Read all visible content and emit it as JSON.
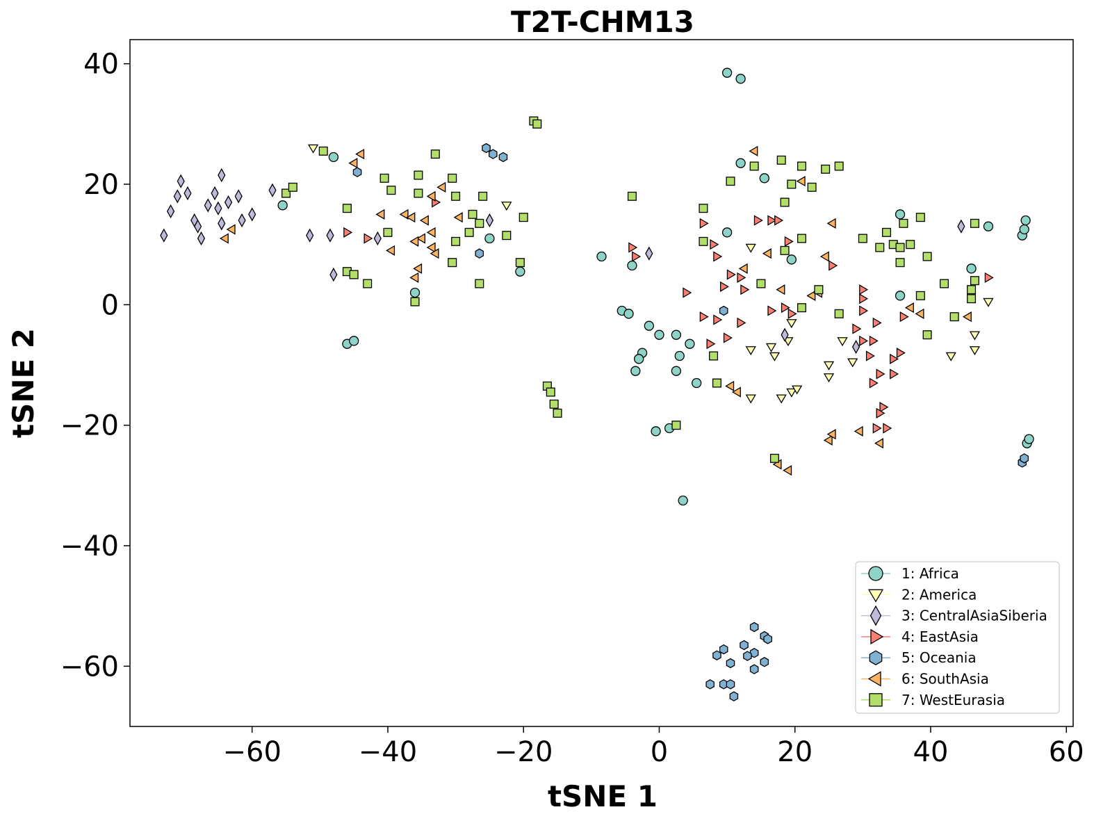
{
  "chart_data": {
    "type": "scatter",
    "title": "T2T-CHM13",
    "xlabel": "tSNE 1",
    "ylabel": "tSNE 2",
    "xlim": [
      -78,
      61
    ],
    "ylim": [
      -70,
      44
    ],
    "xticks": [
      -60,
      -40,
      -20,
      0,
      20,
      40,
      60
    ],
    "yticks": [
      40,
      20,
      0,
      -20,
      -40,
      -60
    ],
    "xtick_labels": [
      "−60",
      "−40",
      "−20",
      "0",
      "20",
      "40",
      "60"
    ],
    "ytick_labels": [
      "40",
      "20",
      "0",
      "−20",
      "−40",
      "−60"
    ],
    "grid": false,
    "legend_position": "lower-right",
    "series": [
      {
        "name": "1: Africa",
        "marker": "circle",
        "color": "#8dd3c7",
        "points": [
          [
            10,
            38.5
          ],
          [
            12,
            37.5
          ],
          [
            -48,
            24.5
          ],
          [
            12,
            23.5
          ],
          [
            15.5,
            21
          ],
          [
            -55.5,
            16.5
          ],
          [
            35.5,
            15
          ],
          [
            10,
            12
          ],
          [
            -25,
            11
          ],
          [
            -8.5,
            8
          ],
          [
            19.5,
            7.5
          ],
          [
            -4,
            6.5
          ],
          [
            -20.5,
            5.5
          ],
          [
            -36,
            2
          ],
          [
            35.5,
            1.5
          ],
          [
            -5.5,
            -1
          ],
          [
            -4.5,
            -1.5
          ],
          [
            -1.5,
            -3.5
          ],
          [
            0,
            -5
          ],
          [
            2.5,
            -5
          ],
          [
            4.5,
            -6.5
          ],
          [
            -46,
            -6.5
          ],
          [
            -45,
            -6
          ],
          [
            -2.5,
            -8
          ],
          [
            3,
            -8.5
          ],
          [
            -3,
            -9
          ],
          [
            -3.5,
            -11
          ],
          [
            2.5,
            -11
          ],
          [
            5.5,
            -13
          ],
          [
            -0.5,
            -21
          ],
          [
            1.5,
            -20.5
          ],
          [
            3.5,
            -32.5
          ],
          [
            46,
            6
          ],
          [
            53.5,
            11.5
          ],
          [
            53.8,
            12.5
          ],
          [
            54,
            14
          ],
          [
            48.5,
            13
          ],
          [
            54.2,
            -23
          ],
          [
            54.5,
            -22.3
          ]
        ]
      },
      {
        "name": "2: America",
        "marker": "triangle-down",
        "color": "#ffffb3",
        "points": [
          [
            -51,
            26
          ],
          [
            -22.5,
            16.5
          ],
          [
            13.5,
            9.5
          ],
          [
            48.5,
            0.5
          ],
          [
            19.5,
            -3
          ],
          [
            13.5,
            -7.5
          ],
          [
            16.5,
            -7
          ],
          [
            19,
            -6
          ],
          [
            27,
            -6
          ],
          [
            46.5,
            -5
          ],
          [
            17,
            -8.5
          ],
          [
            28.5,
            -9.5
          ],
          [
            25,
            -10
          ],
          [
            43,
            -8.5
          ],
          [
            46.5,
            -7.5
          ],
          [
            25,
            -12
          ],
          [
            19.5,
            -14.5
          ],
          [
            20.3,
            -14
          ],
          [
            13.5,
            -15.5
          ],
          [
            18,
            -15.5
          ]
        ]
      },
      {
        "name": "3: CentralAsiaSiberia",
        "marker": "diamond",
        "color": "#bebada",
        "points": [
          [
            -73,
            11.5
          ],
          [
            -72,
            15.5
          ],
          [
            -71,
            18
          ],
          [
            -70.5,
            20.5
          ],
          [
            -69.5,
            18.5
          ],
          [
            -68.5,
            14
          ],
          [
            -68,
            13
          ],
          [
            -67.5,
            11
          ],
          [
            -66.5,
            16.5
          ],
          [
            -65.5,
            18.5
          ],
          [
            -65,
            16
          ],
          [
            -64.5,
            21.5
          ],
          [
            -64.5,
            13.5
          ],
          [
            -63.5,
            17
          ],
          [
            -62,
            18
          ],
          [
            -61.5,
            14
          ],
          [
            -60,
            15
          ],
          [
            -57,
            19
          ],
          [
            -51.5,
            11.5
          ],
          [
            -48.5,
            11.5
          ],
          [
            -48,
            5
          ],
          [
            -41.5,
            11
          ],
          [
            -25,
            14
          ],
          [
            -1.5,
            8.5
          ],
          [
            18.5,
            -5
          ],
          [
            29,
            -7
          ],
          [
            44.5,
            13
          ]
        ]
      },
      {
        "name": "4: EastAsia",
        "marker": "triangle-right",
        "color": "#fb8072",
        "points": [
          [
            -46,
            12
          ],
          [
            -43,
            11
          ],
          [
            -33,
            17
          ],
          [
            6.5,
            13.5
          ],
          [
            14.5,
            14
          ],
          [
            16.5,
            14
          ],
          [
            17.5,
            14
          ],
          [
            8,
            10
          ],
          [
            19,
            10.5
          ],
          [
            -4,
            9.5
          ],
          [
            -3.5,
            8
          ],
          [
            8.5,
            8
          ],
          [
            9.5,
            3
          ],
          [
            10.5,
            5
          ],
          [
            12,
            4.5
          ],
          [
            12.5,
            2.5
          ],
          [
            4,
            2
          ],
          [
            30,
            2.5
          ],
          [
            30,
            1
          ],
          [
            16.5,
            -1
          ],
          [
            18.5,
            -0.5
          ],
          [
            19.5,
            -1.5
          ],
          [
            25.5,
            6.5
          ],
          [
            6.5,
            -2
          ],
          [
            8.5,
            -2.5
          ],
          [
            12,
            -3
          ],
          [
            29,
            -4
          ],
          [
            30,
            -6
          ],
          [
            7.5,
            -6.5
          ],
          [
            10,
            -5.5
          ],
          [
            30,
            -1
          ],
          [
            32,
            -3
          ],
          [
            36,
            -2
          ],
          [
            31.5,
            -6
          ],
          [
            31,
            -8.5
          ],
          [
            35.5,
            -8
          ],
          [
            34.5,
            -9
          ],
          [
            32.5,
            -11.5
          ],
          [
            34.5,
            -11.5
          ],
          [
            31.5,
            -13
          ],
          [
            33,
            -17
          ],
          [
            32.5,
            -18
          ],
          [
            32,
            -20.5
          ],
          [
            33.5,
            -20.5
          ],
          [
            48.5,
            4.5
          ]
        ]
      },
      {
        "name": "5: Oceania",
        "marker": "hexagon",
        "color": "#80b1d3",
        "points": [
          [
            -25.5,
            26
          ],
          [
            -24.5,
            25
          ],
          [
            -23,
            24.5
          ],
          [
            -44.5,
            22
          ],
          [
            -26.5,
            8.5
          ],
          [
            9.5,
            -1
          ],
          [
            53.5,
            -26.2
          ],
          [
            53.8,
            -25.5
          ],
          [
            14,
            -53.5
          ],
          [
            15.5,
            -55
          ],
          [
            16,
            -55.5
          ],
          [
            12.5,
            -56.5
          ],
          [
            14,
            -57.8
          ],
          [
            13,
            -58.3
          ],
          [
            8.5,
            -58.2
          ],
          [
            9.5,
            -57.2
          ],
          [
            10.5,
            -59.5
          ],
          [
            15.5,
            -59.3
          ],
          [
            14,
            -60.5
          ],
          [
            7.5,
            -63
          ],
          [
            9.5,
            -63
          ],
          [
            10.5,
            -63
          ],
          [
            11,
            -65
          ]
        ]
      },
      {
        "name": "6: SouthAsia",
        "marker": "triangle-left",
        "color": "#fdb462",
        "points": [
          [
            -44,
            25
          ],
          [
            -45,
            23.5
          ],
          [
            -33.5,
            18
          ],
          [
            -32,
            19.5
          ],
          [
            -41,
            15
          ],
          [
            -37.5,
            15
          ],
          [
            -36.5,
            14.5
          ],
          [
            -34.5,
            14
          ],
          [
            -29.5,
            14.5
          ],
          [
            -63,
            12.5
          ],
          [
            -64,
            11
          ],
          [
            -33.5,
            12
          ],
          [
            -35,
            11
          ],
          [
            -36,
            10.5
          ],
          [
            -39.5,
            9
          ],
          [
            -33.5,
            9.5
          ],
          [
            -33,
            8.5
          ],
          [
            -35.5,
            6
          ],
          [
            -36,
            4.5
          ],
          [
            14,
            25.5
          ],
          [
            21,
            20.5
          ],
          [
            25.5,
            13.5
          ],
          [
            16,
            8.5
          ],
          [
            12.5,
            6
          ],
          [
            18,
            2.5
          ],
          [
            22.5,
            1.5
          ],
          [
            23.5,
            2
          ],
          [
            24.5,
            8
          ],
          [
            37,
            -0.5
          ],
          [
            38.5,
            -1.5
          ],
          [
            45.5,
            -2
          ],
          [
            10.5,
            -13.5
          ],
          [
            11.5,
            -14.5
          ],
          [
            17.5,
            -26.5
          ],
          [
            19,
            -27.5
          ],
          [
            25,
            -22.5
          ],
          [
            25.5,
            -21.5
          ],
          [
            29.5,
            -21
          ],
          [
            32.5,
            -23
          ]
        ]
      },
      {
        "name": "7: WestEurasia",
        "marker": "square",
        "color": "#b3de69",
        "points": [
          [
            -18.5,
            30.5
          ],
          [
            -18,
            30
          ],
          [
            -49.5,
            25.5
          ],
          [
            -33,
            25
          ],
          [
            -40.5,
            21
          ],
          [
            -35.5,
            21.5
          ],
          [
            -30.5,
            21
          ],
          [
            -39.5,
            19
          ],
          [
            -55,
            18.5
          ],
          [
            -54,
            19.5
          ],
          [
            -35.5,
            18.5
          ],
          [
            -30,
            18
          ],
          [
            -26,
            18
          ],
          [
            -46,
            16
          ],
          [
            -27.5,
            15
          ],
          [
            -20,
            14.5
          ],
          [
            -26.5,
            13.5
          ],
          [
            -28,
            12
          ],
          [
            -40,
            12
          ],
          [
            -22.5,
            11.5
          ],
          [
            -30,
            10.5
          ],
          [
            -20.5,
            7
          ],
          [
            -30.5,
            7
          ],
          [
            -46,
            5.5
          ],
          [
            -45,
            5
          ],
          [
            -43,
            3.5
          ],
          [
            -26.5,
            3.5
          ],
          [
            -36,
            0.5
          ],
          [
            -4,
            18
          ],
          [
            6.5,
            16
          ],
          [
            10.5,
            20.5
          ],
          [
            14,
            23
          ],
          [
            18,
            24
          ],
          [
            21,
            23
          ],
          [
            24.5,
            22.5
          ],
          [
            26.5,
            23
          ],
          [
            19.5,
            20
          ],
          [
            22.5,
            19.5
          ],
          [
            18.5,
            17
          ],
          [
            21,
            11
          ],
          [
            30,
            11
          ],
          [
            33.5,
            12
          ],
          [
            36,
            13.5
          ],
          [
            38.5,
            14.5
          ],
          [
            32.5,
            9.5
          ],
          [
            34.5,
            10
          ],
          [
            35.5,
            9.5
          ],
          [
            37,
            10
          ],
          [
            35.5,
            7
          ],
          [
            39.5,
            8
          ],
          [
            6.5,
            10.5
          ],
          [
            18.5,
            9
          ],
          [
            15,
            3.5
          ],
          [
            21,
            -0.5
          ],
          [
            23.5,
            2.5
          ],
          [
            26.5,
            -1.5
          ],
          [
            38.5,
            1.5
          ],
          [
            42,
            3.5
          ],
          [
            46,
            2.5
          ],
          [
            46.5,
            4
          ],
          [
            46.5,
            13.5
          ],
          [
            46,
            1
          ],
          [
            43.5,
            -2
          ],
          [
            39.5,
            -5
          ],
          [
            8,
            -8.5
          ],
          [
            8.5,
            -13
          ],
          [
            2.5,
            -20
          ],
          [
            -16.5,
            -13.5
          ],
          [
            -16,
            -14.5
          ],
          [
            -15.5,
            -16.5
          ],
          [
            -15,
            -18
          ],
          [
            17,
            -25.5
          ]
        ]
      }
    ]
  }
}
